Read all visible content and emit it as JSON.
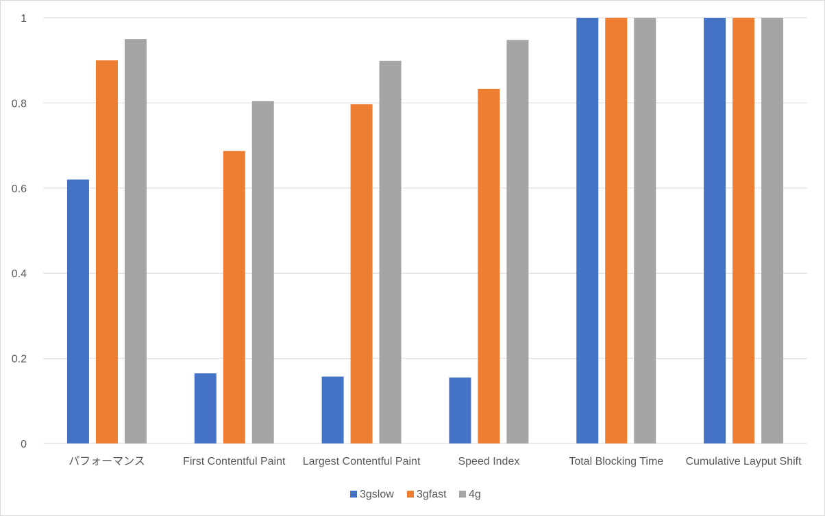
{
  "chart_data": {
    "type": "bar",
    "title": "",
    "xlabel": "",
    "ylabel": "",
    "ylim": [
      0,
      1
    ],
    "yticks": [
      0,
      0.2,
      0.4,
      0.6,
      0.8,
      1
    ],
    "ytick_labels": [
      "0",
      "0.2",
      "0.4",
      "0.6",
      "0.8",
      "1"
    ],
    "grid": "horizontal",
    "legend_position": "bottom",
    "categories": [
      "パフォーマンス",
      "First Contentful Paint",
      "Largest Contentful Paint",
      "Speed Index",
      "Total Blocking Time",
      "Cumulative Layput Shift"
    ],
    "series": [
      {
        "name": "3gslow",
        "color": "#4472c4",
        "values": [
          0.62,
          0.165,
          0.157,
          0.155,
          1,
          1
        ]
      },
      {
        "name": "3gfast",
        "color": "#ed7d31",
        "values": [
          0.9,
          0.687,
          0.797,
          0.833,
          1,
          1
        ]
      },
      {
        "name": "4g",
        "color": "#a5a5a5",
        "values": [
          0.95,
          0.804,
          0.899,
          0.948,
          1,
          1
        ]
      }
    ]
  }
}
